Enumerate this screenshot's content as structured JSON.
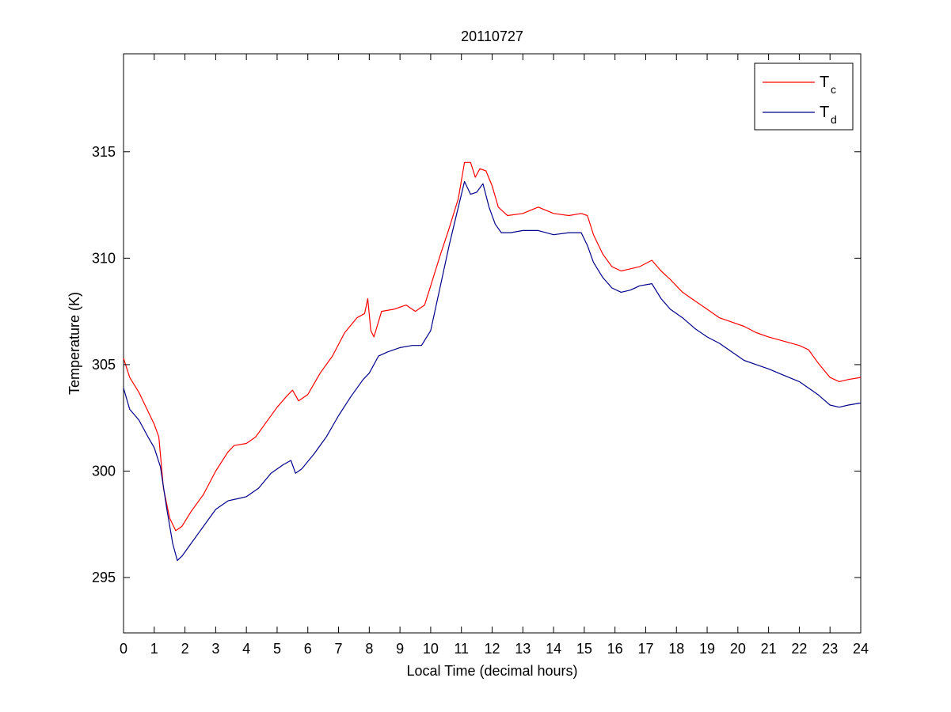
{
  "chart_data": {
    "type": "line",
    "title": "20110727",
    "xlabel": "Local Time (decimal hours)",
    "ylabel": "Temperature (K)",
    "xlim": [
      0,
      24
    ],
    "ylim": [
      292.4,
      319.6
    ],
    "xticks": [
      "0",
      "1",
      "2",
      "3",
      "4",
      "5",
      "6",
      "7",
      "8",
      "9",
      "10",
      "11",
      "12",
      "13",
      "14",
      "15",
      "16",
      "17",
      "18",
      "19",
      "20",
      "21",
      "22",
      "23",
      "24"
    ],
    "yticks": [
      "295",
      "300",
      "305",
      "310",
      "315"
    ],
    "grid": false,
    "legend_position": "top-right",
    "series": [
      {
        "name": "Tc",
        "legend_main": "T",
        "legend_sub": "c",
        "color": "#ff0000",
        "x": [
          0,
          0.2,
          0.5,
          0.8,
          1.0,
          1.15,
          1.3,
          1.5,
          1.7,
          1.9,
          2.2,
          2.6,
          3.0,
          3.4,
          3.6,
          4.0,
          4.3,
          4.6,
          5.0,
          5.3,
          5.5,
          5.7,
          6.0,
          6.4,
          6.8,
          7.2,
          7.6,
          7.85,
          7.95,
          8.05,
          8.15,
          8.4,
          8.8,
          9.2,
          9.5,
          9.8,
          10.0,
          10.3,
          10.6,
          10.9,
          11.1,
          11.3,
          11.45,
          11.6,
          11.8,
          12.0,
          12.2,
          12.5,
          13.0,
          13.5,
          14.0,
          14.5,
          14.9,
          15.1,
          15.3,
          15.6,
          15.9,
          16.2,
          16.5,
          16.8,
          17.2,
          17.5,
          17.8,
          18.2,
          18.6,
          19.0,
          19.4,
          19.8,
          20.2,
          20.6,
          21.0,
          21.5,
          22.0,
          22.3,
          22.6,
          23.0,
          23.3,
          23.6,
          24.0
        ],
        "y": [
          305.3,
          304.4,
          303.7,
          302.8,
          302.2,
          301.6,
          299.2,
          297.8,
          297.2,
          297.4,
          298.1,
          298.9,
          300.0,
          300.9,
          301.2,
          301.3,
          301.6,
          302.2,
          303.0,
          303.5,
          303.8,
          303.3,
          303.6,
          304.6,
          305.4,
          306.5,
          307.2,
          307.4,
          308.1,
          306.6,
          306.3,
          307.5,
          307.6,
          307.8,
          307.5,
          307.8,
          308.7,
          310.1,
          311.4,
          312.8,
          314.5,
          314.5,
          313.8,
          314.2,
          314.1,
          313.4,
          312.4,
          312.0,
          312.1,
          312.4,
          312.1,
          312.0,
          312.1,
          312.0,
          311.1,
          310.2,
          309.6,
          309.4,
          309.5,
          309.6,
          309.9,
          309.4,
          309.0,
          308.4,
          308.0,
          307.6,
          307.2,
          307.0,
          306.8,
          306.5,
          306.3,
          306.1,
          305.9,
          305.7,
          305.1,
          304.4,
          304.2,
          304.3,
          304.4
        ]
      },
      {
        "name": "Td",
        "legend_main": "T",
        "legend_sub": "d",
        "color": "#00008b",
        "x": [
          0,
          0.2,
          0.5,
          0.8,
          1.0,
          1.2,
          1.4,
          1.6,
          1.75,
          1.9,
          2.2,
          2.6,
          3.0,
          3.4,
          3.7,
          4.0,
          4.4,
          4.8,
          5.2,
          5.45,
          5.6,
          5.8,
          6.2,
          6.6,
          7.0,
          7.4,
          7.8,
          8.0,
          8.3,
          8.6,
          9.0,
          9.4,
          9.7,
          10.0,
          10.3,
          10.6,
          10.9,
          11.1,
          11.3,
          11.5,
          11.7,
          11.9,
          12.1,
          12.3,
          12.6,
          13.0,
          13.5,
          14.0,
          14.5,
          14.9,
          15.1,
          15.3,
          15.6,
          15.9,
          16.2,
          16.5,
          16.8,
          17.2,
          17.5,
          17.8,
          18.2,
          18.6,
          19.0,
          19.4,
          19.8,
          20.2,
          20.6,
          21.0,
          21.5,
          22.0,
          22.3,
          22.6,
          23.0,
          23.3,
          23.6,
          24.0
        ],
        "y": [
          303.9,
          302.9,
          302.4,
          301.6,
          301.1,
          300.2,
          298.3,
          296.6,
          295.8,
          296.0,
          296.6,
          297.4,
          298.2,
          298.6,
          298.7,
          298.8,
          299.2,
          299.9,
          300.3,
          300.5,
          299.9,
          300.1,
          300.8,
          301.6,
          302.6,
          303.5,
          304.3,
          304.6,
          305.4,
          305.6,
          305.8,
          305.9,
          305.9,
          306.6,
          308.6,
          310.6,
          312.4,
          313.6,
          313.0,
          313.1,
          313.5,
          312.4,
          311.6,
          311.2,
          311.2,
          311.3,
          311.3,
          311.1,
          311.2,
          311.2,
          310.6,
          309.8,
          309.1,
          308.6,
          308.4,
          308.5,
          308.7,
          308.8,
          308.1,
          307.6,
          307.2,
          306.7,
          306.3,
          306.0,
          305.6,
          305.2,
          305.0,
          304.8,
          304.5,
          304.2,
          303.9,
          303.6,
          303.1,
          303.0,
          303.1,
          303.2
        ]
      }
    ]
  }
}
